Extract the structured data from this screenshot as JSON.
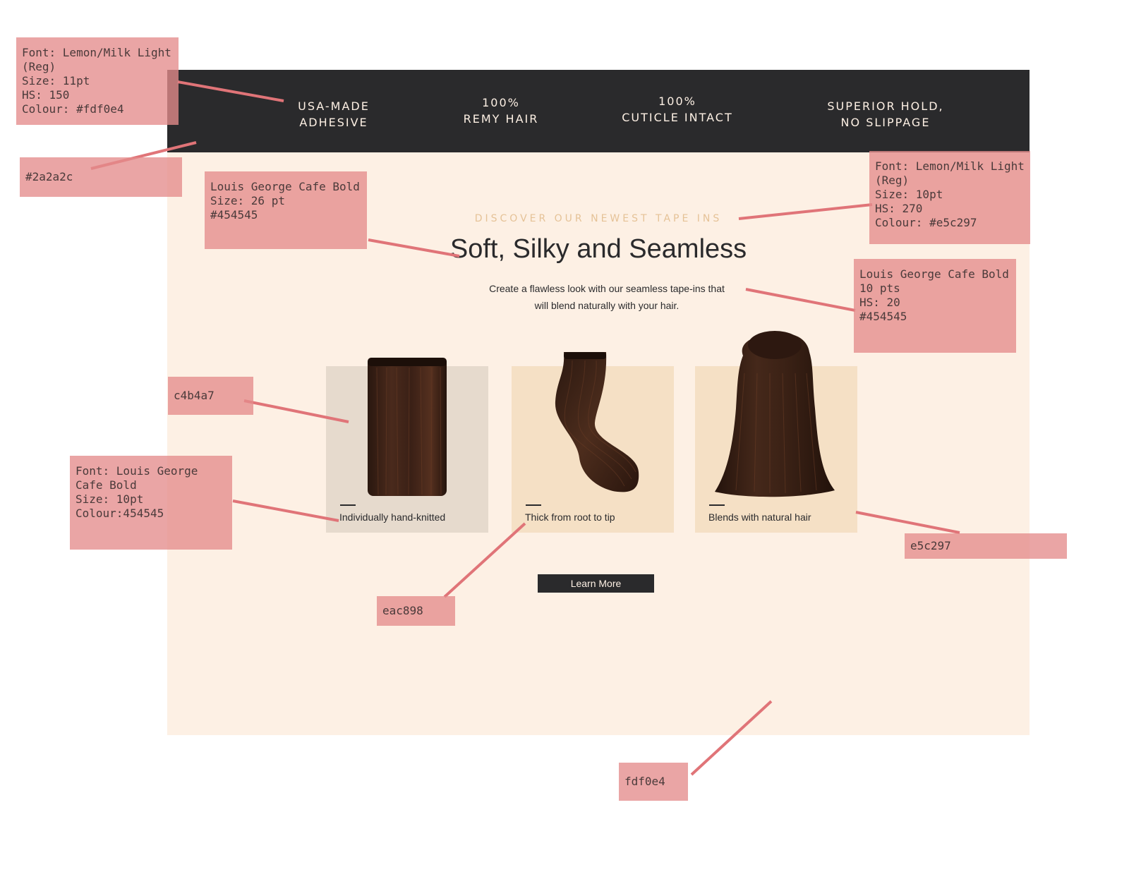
{
  "topbar": {
    "items": [
      {
        "line1": "USA-MADE",
        "line2": "ADHESIVE"
      },
      {
        "line1": "100%",
        "line2": "REMY HAIR"
      },
      {
        "line1": "100%",
        "line2": "CUTICLE INTACT"
      },
      {
        "line1": "SUPERIOR HOLD,",
        "line2": "NO SLIPPAGE"
      }
    ]
  },
  "hero": {
    "eyebrow": "DISCOVER OUR NEWEST TAPE INS",
    "headline": "Soft, Silky and Seamless",
    "subcopy_line1": "Create a flawless look with our seamless tape-ins that",
    "subcopy_line2": "will blend naturally with your hair."
  },
  "cards": [
    {
      "caption": "Individually hand-knitted",
      "bg": "#e6dacd",
      "image": "straight-tape-weft-image"
    },
    {
      "caption": "Thick from root to tip",
      "bg": "#f5e0c5",
      "image": "wavy-tape-weft-image"
    },
    {
      "caption": "Blends with natural hair",
      "bg": "#f5e0c5",
      "image": "hair-back-view-image"
    }
  ],
  "cta": {
    "label": "Learn More"
  },
  "annotations": {
    "topbar_font": {
      "l1": "Font: Lemon/Milk Light",
      "l2": "(Reg)",
      "l3": "Size: 11pt",
      "l4": "HS: 150",
      "l5": "Colour: #fdf0e4"
    },
    "topbar_bg": "#2a2a2c",
    "headline_font": {
      "l1": "Louis George Cafe Bold",
      "l2": "Size: 26 pt",
      "l3": "#454545"
    },
    "eyebrow_font": {
      "l1": "Font: Lemon/Milk Light",
      "l2": "(Reg)",
      "l3": "Size: 10pt",
      "l4": "HS: 270",
      "l5": "Colour: #e5c297"
    },
    "subcopy_font": {
      "l1": "Louis George Cafe Bold",
      "l2": "10 pts",
      "l3": "HS: 20",
      "l4": "#454545"
    },
    "card1_color": "c4b4a7",
    "caption_font": {
      "l1": "Font: Louis George",
      "l2": "Cafe Bold",
      "l3": "Size: 10pt",
      "l4": "Colour:454545"
    },
    "card2_color": "eac898",
    "card3_color": "e5c297",
    "page_bg": "fdf0e4"
  },
  "colors": {
    "topbar": "#2a2a2c",
    "page_bg": "#fdf0e4",
    "eyebrow": "#e5c297",
    "text": "#454545",
    "annotation": "#e48c8c"
  }
}
